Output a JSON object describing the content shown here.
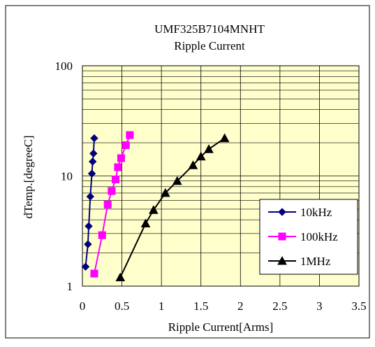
{
  "chart_data": {
    "type": "line",
    "title": "UMF325B7104MNHT",
    "subtitle": "Ripple Current",
    "xlabel": "Ripple Current[Arms]",
    "ylabel": "dTemp.[degreeC]",
    "xlim": [
      0,
      3.5
    ],
    "ylim": [
      1,
      100
    ],
    "yscale": "log",
    "x_ticks": [
      "0",
      "0.5",
      "1",
      "1.5",
      "2",
      "2.5",
      "3",
      "3.5"
    ],
    "y_ticks": [
      "1",
      "10",
      "100"
    ],
    "grid": true,
    "legend_position": "right",
    "plot_background": "#ffffcc",
    "series": [
      {
        "name": "10kHz",
        "color": "#000080",
        "marker": "diamond",
        "x": [
          0.04,
          0.07,
          0.08,
          0.1,
          0.12,
          0.13,
          0.14,
          0.15
        ],
        "y": [
          1.5,
          2.4,
          3.5,
          6.5,
          10.5,
          13.5,
          16,
          22
        ]
      },
      {
        "name": "100kHz",
        "color": "#ff00ff",
        "marker": "square",
        "x": [
          0.15,
          0.25,
          0.32,
          0.37,
          0.42,
          0.45,
          0.49,
          0.55,
          0.6
        ],
        "y": [
          1.3,
          2.9,
          5.5,
          7.3,
          9.3,
          12,
          14.5,
          19,
          23.5
        ]
      },
      {
        "name": "1MHz",
        "color": "#000000",
        "marker": "triangle",
        "x": [
          0.48,
          0.8,
          0.9,
          1.05,
          1.2,
          1.4,
          1.5,
          1.6,
          1.8
        ],
        "y": [
          1.2,
          3.7,
          4.9,
          7,
          9,
          12.5,
          15,
          17.5,
          22
        ]
      }
    ]
  }
}
